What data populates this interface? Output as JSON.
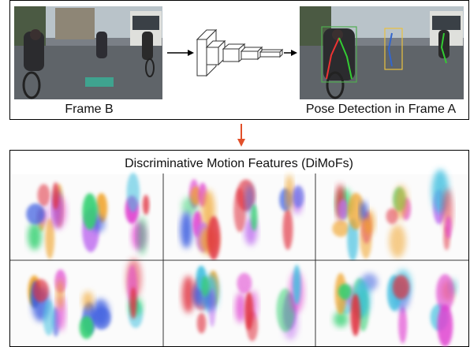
{
  "top_panel": {
    "left_caption": "Frame B",
    "right_caption": "Pose Detection in Frame A"
  },
  "bottom_panel": {
    "title": "Discriminative Motion Features (DiMoFs)"
  }
}
